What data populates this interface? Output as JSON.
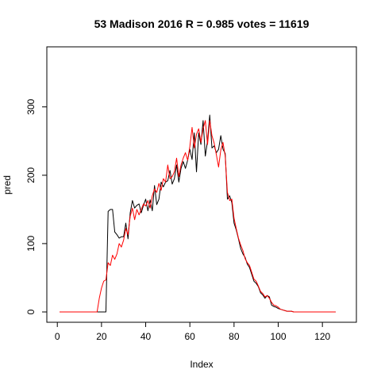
{
  "chart_data": {
    "type": "line",
    "title": "53 Madison 2016 R = 0.985 votes = 11619",
    "xlabel": "Index",
    "ylabel": "pred",
    "xlim": [
      1,
      130
    ],
    "ylim": [
      0,
      360
    ],
    "x_ticks": [
      0,
      20,
      40,
      60,
      80,
      100,
      120
    ],
    "y_ticks": [
      0,
      100,
      200,
      300
    ],
    "grid": false,
    "colors": {
      "black_series": "#000000",
      "red_series": "#ff0000"
    },
    "series": [
      {
        "color": "#000000",
        "values": [
          0,
          0,
          0,
          0,
          0,
          0,
          0,
          0,
          0,
          0,
          0,
          0,
          0,
          0,
          0,
          0,
          0,
          0,
          0,
          0,
          0,
          0,
          147,
          150,
          150,
          117,
          113,
          108,
          110,
          110,
          130,
          107,
          145,
          163,
          152,
          156,
          158,
          145,
          156,
          165,
          148,
          164,
          148,
          185,
          157,
          165,
          190,
          183,
          190,
          192,
          207,
          187,
          195,
          215,
          190,
          210,
          220,
          210,
          222,
          238,
          223,
          262,
          205,
          262,
          245,
          280,
          228,
          250,
          288,
          240,
          243,
          233,
          238,
          258,
          238,
          232,
          165,
          170,
          160,
          130,
          120,
          107,
          93,
          85,
          80,
          70,
          65,
          55,
          45,
          42,
          37,
          28,
          25,
          20,
          24,
          22,
          10,
          8,
          7,
          5,
          4,
          3,
          2,
          1,
          1,
          1,
          0,
          0,
          0,
          0,
          0,
          0,
          0,
          0,
          0,
          0,
          0,
          0,
          0,
          0,
          0,
          0,
          0,
          0,
          0,
          0
        ]
      },
      {
        "color": "#ff0000",
        "values": [
          0,
          0,
          0,
          0,
          0,
          0,
          0,
          0,
          0,
          0,
          0,
          0,
          0,
          0,
          0,
          0,
          0,
          0,
          20,
          35,
          45,
          47,
          72,
          68,
          83,
          77,
          85,
          100,
          95,
          105,
          122,
          113,
          140,
          152,
          135,
          150,
          142,
          150,
          158,
          155,
          163,
          152,
          170,
          180,
          175,
          188,
          178,
          195,
          190,
          215,
          195,
          198,
          205,
          225,
          198,
          215,
          225,
          233,
          222,
          242,
          270,
          240,
          260,
          268,
          248,
          268,
          280,
          245,
          280,
          258,
          247,
          230,
          212,
          237,
          248,
          228,
          175,
          163,
          165,
          137,
          122,
          108,
          98,
          90,
          78,
          72,
          68,
          58,
          48,
          45,
          38,
          30,
          27,
          22,
          24,
          20,
          14,
          10,
          9,
          7,
          4,
          3,
          2,
          1,
          1,
          1,
          0,
          0,
          0,
          0,
          0,
          0,
          0,
          0,
          0,
          0,
          0,
          0,
          0,
          0,
          0,
          0,
          0,
          0,
          0,
          0
        ]
      }
    ]
  }
}
